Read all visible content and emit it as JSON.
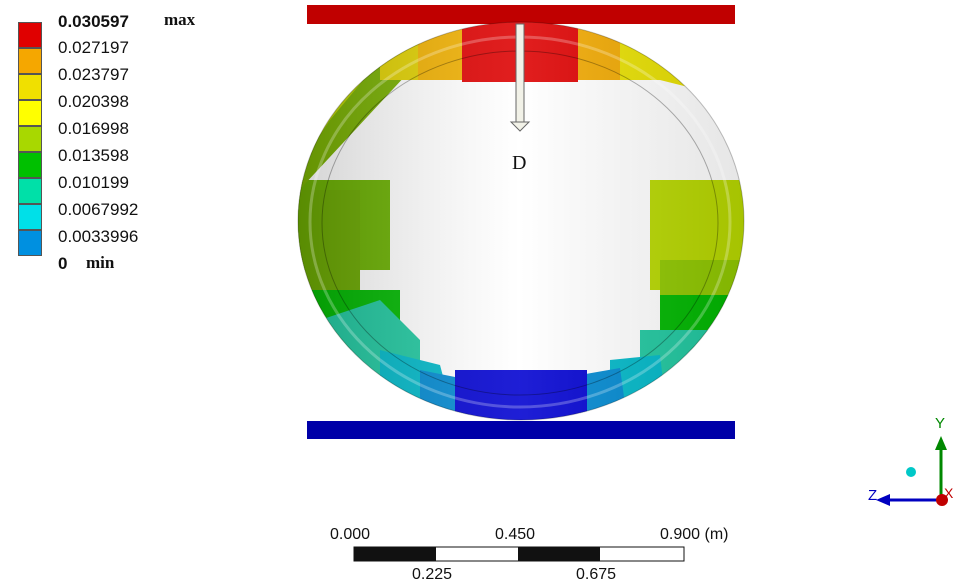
{
  "legend": {
    "levels": [
      {
        "value": "0.030597",
        "color": "#e00000",
        "bold": true
      },
      {
        "value": "0.027197",
        "color": "#f5a700"
      },
      {
        "value": "0.023797",
        "color": "#f0e000"
      },
      {
        "value": "0.020398",
        "color": "#ffff00"
      },
      {
        "value": "0.016998",
        "color": "#a8d800"
      },
      {
        "value": "0.013598",
        "color": "#00c000"
      },
      {
        "value": "0.010199",
        "color": "#00e0a8"
      },
      {
        "value": "0.0067992",
        "color": "#00e0e8"
      },
      {
        "value": "0.0033996",
        "color": "#0090e0"
      },
      {
        "value": "0",
        "color": "#0000d8",
        "bold": true
      }
    ],
    "max_tag": "max",
    "min_tag": "min"
  },
  "model": {
    "load_label": "D",
    "top_plate_color": "#c00000",
    "bottom_plate_color": "#0000a8"
  },
  "scale_bar": {
    "top_labels": [
      "0.000",
      "0.450",
      "0.900 (m)"
    ],
    "bottom_labels": [
      "0.225",
      "0.675"
    ]
  },
  "triad": {
    "y_label": "Y",
    "z_label": "Z",
    "x_label": "X"
  }
}
